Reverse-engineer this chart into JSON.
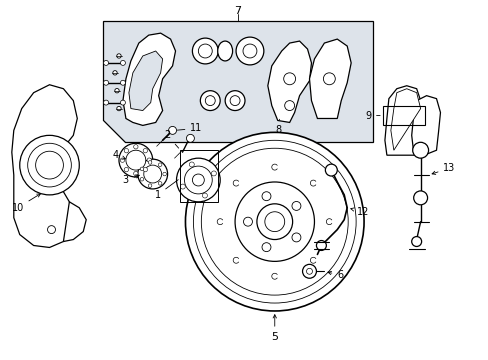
{
  "fig_width": 4.89,
  "fig_height": 3.6,
  "dpi": 100,
  "bg": "#ffffff",
  "box_bg": "#e0e4e8",
  "lc": "#000000",
  "lw_thin": 0.6,
  "lw_med": 0.9,
  "lw_thick": 1.2,
  "label_fs": 7,
  "xlim": [
    0,
    4.89
  ],
  "ylim": [
    0,
    3.6
  ]
}
